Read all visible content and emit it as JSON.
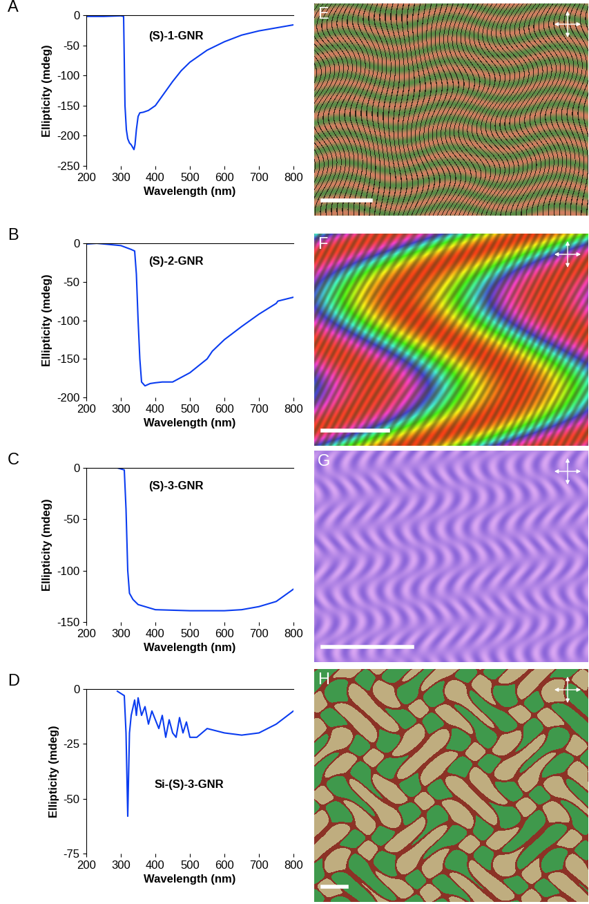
{
  "chart_data": [
    {
      "type": "line",
      "title": "A",
      "annotations": [
        "(S)-1-GNR"
      ],
      "xlabel": "Wavelength (nm)",
      "ylabel": "Ellipticity (mdeg)",
      "color": "#0a3cf0",
      "x": [
        200,
        250,
        300,
        308,
        312,
        316,
        320,
        325,
        330,
        335,
        338,
        341,
        345,
        350,
        355,
        365,
        380,
        400,
        425,
        450,
        475,
        500,
        550,
        600,
        650,
        700,
        750,
        800
      ],
      "values": [
        -2,
        -2,
        -1,
        -2,
        -150,
        -190,
        -205,
        -212,
        -215,
        -220,
        -223,
        -215,
        -190,
        -168,
        -162,
        -161,
        -158,
        -150,
        -130,
        -110,
        -92,
        -78,
        -58,
        -44,
        -33,
        -26,
        -21,
        -16
      ],
      "xlim": [
        200,
        800
      ],
      "xticks": [
        200,
        300,
        400,
        500,
        600,
        700,
        800
      ],
      "ylim": [
        -250,
        0
      ],
      "yticks": [
        -250,
        -200,
        -150,
        -100,
        -50,
        0
      ]
    },
    {
      "type": "line",
      "title": "B",
      "annotations": [
        "(S)-2-GNR"
      ],
      "xlabel": "Wavelength (nm)",
      "ylabel": "Ellipticity (mdeg)",
      "color": "#0a3cf0",
      "x": [
        200,
        230,
        300,
        330,
        340,
        345,
        350,
        355,
        360,
        370,
        385,
        400,
        420,
        450,
        500,
        550,
        565,
        600,
        650,
        700,
        750,
        755,
        800
      ],
      "values": [
        -1,
        0,
        -3,
        -8,
        -10,
        -40,
        -100,
        -150,
        -180,
        -185,
        -182,
        -181,
        -180,
        -180,
        -168,
        -150,
        -140,
        -125,
        -108,
        -92,
        -78,
        -75,
        -70
      ],
      "xlim": [
        200,
        800
      ],
      "xticks": [
        200,
        300,
        400,
        500,
        600,
        700,
        800
      ],
      "ylim": [
        -200,
        0
      ],
      "yticks": [
        -200,
        -150,
        -100,
        -50,
        0
      ]
    },
    {
      "type": "line",
      "title": "C",
      "annotations": [
        "(S)-3-GNR"
      ],
      "xlabel": "Wavelength (nm)",
      "ylabel": "Ellipticity (mdeg)",
      "color": "#0a3cf0",
      "x": [
        290,
        310,
        315,
        320,
        325,
        335,
        350,
        400,
        500,
        600,
        650,
        700,
        750,
        800
      ],
      "values": [
        0,
        -2,
        -40,
        -100,
        -122,
        -128,
        -133,
        -138,
        -139,
        -139,
        -138,
        -135,
        -130,
        -118
      ],
      "xlim": [
        200,
        800
      ],
      "xticks": [
        200,
        300,
        400,
        500,
        600,
        700,
        800
      ],
      "ylim": [
        -150,
        0
      ],
      "yticks": [
        -150,
        -100,
        -50,
        0
      ]
    },
    {
      "type": "line",
      "title": "D",
      "annotations": [
        "Si-(S)-3-GNR"
      ],
      "xlabel": "Wavelength (nm)",
      "ylabel": "Ellipticity (mdeg)",
      "color": "#0a3cf0",
      "x": [
        290,
        300,
        310,
        315,
        320,
        325,
        330,
        340,
        345,
        350,
        360,
        370,
        380,
        390,
        400,
        410,
        420,
        430,
        440,
        450,
        460,
        470,
        480,
        490,
        500,
        520,
        550,
        600,
        650,
        700,
        750,
        800
      ],
      "values": [
        -1,
        -2,
        -3,
        -20,
        -58,
        -20,
        -12,
        -5,
        -12,
        -4,
        -12,
        -8,
        -16,
        -10,
        -14,
        -18,
        -12,
        -22,
        -14,
        -20,
        -22,
        -13,
        -20,
        -15,
        -22,
        -22,
        -18,
        -20,
        -21,
        -20,
        -16,
        -10
      ],
      "xlim": [
        200,
        800
      ],
      "xticks": [
        200,
        300,
        400,
        500,
        600,
        700,
        800
      ],
      "ylim": [
        -75,
        0
      ],
      "yticks": [
        -75,
        -50,
        -25,
        0
      ]
    }
  ],
  "images": [
    {
      "label": "E"
    },
    {
      "label": "F"
    },
    {
      "label": "G"
    },
    {
      "label": "H"
    }
  ]
}
